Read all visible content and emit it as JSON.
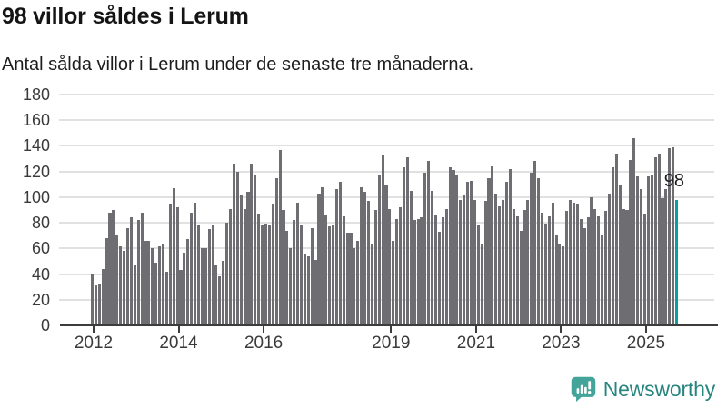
{
  "header": {
    "title": "98 villor såldes i Lerum",
    "subtitle": "Antal sålda villor i Lerum under de senaste tre månaderna."
  },
  "chart_data": {
    "type": "bar",
    "title": "98 villor såldes i Lerum",
    "subtitle": "Antal sålda villor i Lerum under de senaste tre månaderna.",
    "frequency": "monthly",
    "x_start": "2012-01",
    "x_end": "2025-10",
    "values": [
      40,
      31,
      32,
      44,
      68,
      88,
      90,
      70,
      62,
      58,
      76,
      84,
      47,
      82,
      88,
      66,
      66,
      60,
      49,
      62,
      64,
      42,
      95,
      107,
      92,
      43,
      57,
      67,
      88,
      96,
      78,
      60,
      60,
      75,
      78,
      47,
      38,
      50,
      80,
      91,
      126,
      120,
      102,
      91,
      104,
      126,
      117,
      87,
      78,
      79,
      78,
      95,
      115,
      137,
      90,
      74,
      60,
      82,
      96,
      78,
      55,
      54,
      76,
      51,
      103,
      108,
      86,
      77,
      78,
      106,
      112,
      85,
      72,
      72,
      60,
      66,
      108,
      104,
      97,
      63,
      90,
      117,
      133,
      110,
      91,
      66,
      83,
      92,
      123,
      131,
      105,
      82,
      83,
      84,
      119,
      128,
      105,
      86,
      73,
      84,
      91,
      123,
      121,
      118,
      98,
      102,
      112,
      113,
      98,
      78,
      63,
      97,
      115,
      124,
      103,
      93,
      98,
      112,
      122,
      91,
      85,
      74,
      90,
      98,
      119,
      128,
      115,
      88,
      79,
      85,
      96,
      70,
      64,
      62,
      89,
      98,
      96,
      95,
      83,
      76,
      84,
      100,
      91,
      85,
      70,
      89,
      103,
      123,
      134,
      109,
      91,
      90,
      129,
      146,
      116,
      106,
      87,
      116,
      117,
      131,
      134,
      99,
      106,
      138,
      139,
      98
    ],
    "highlight_index": 165,
    "annotation_label": "98",
    "ylim": [
      0,
      180
    ],
    "yticks": [
      0,
      20,
      40,
      60,
      80,
      100,
      120,
      140,
      160,
      180
    ],
    "xtick_years": [
      2012,
      2014,
      2016,
      2019,
      2021,
      2023,
      2025
    ],
    "grid": "horizontal",
    "legend": "none",
    "colors": {
      "bar": "#6d6d72",
      "highlight": "#089fa2",
      "gridline": "#e1e1e1",
      "axis": "#3c3c3c"
    }
  },
  "footer": {
    "brand": "Newsworthy",
    "logo_icon": "bar-chart-speech-bubble-icon",
    "icon_color": "#44a49a",
    "text_color": "#27857f"
  }
}
